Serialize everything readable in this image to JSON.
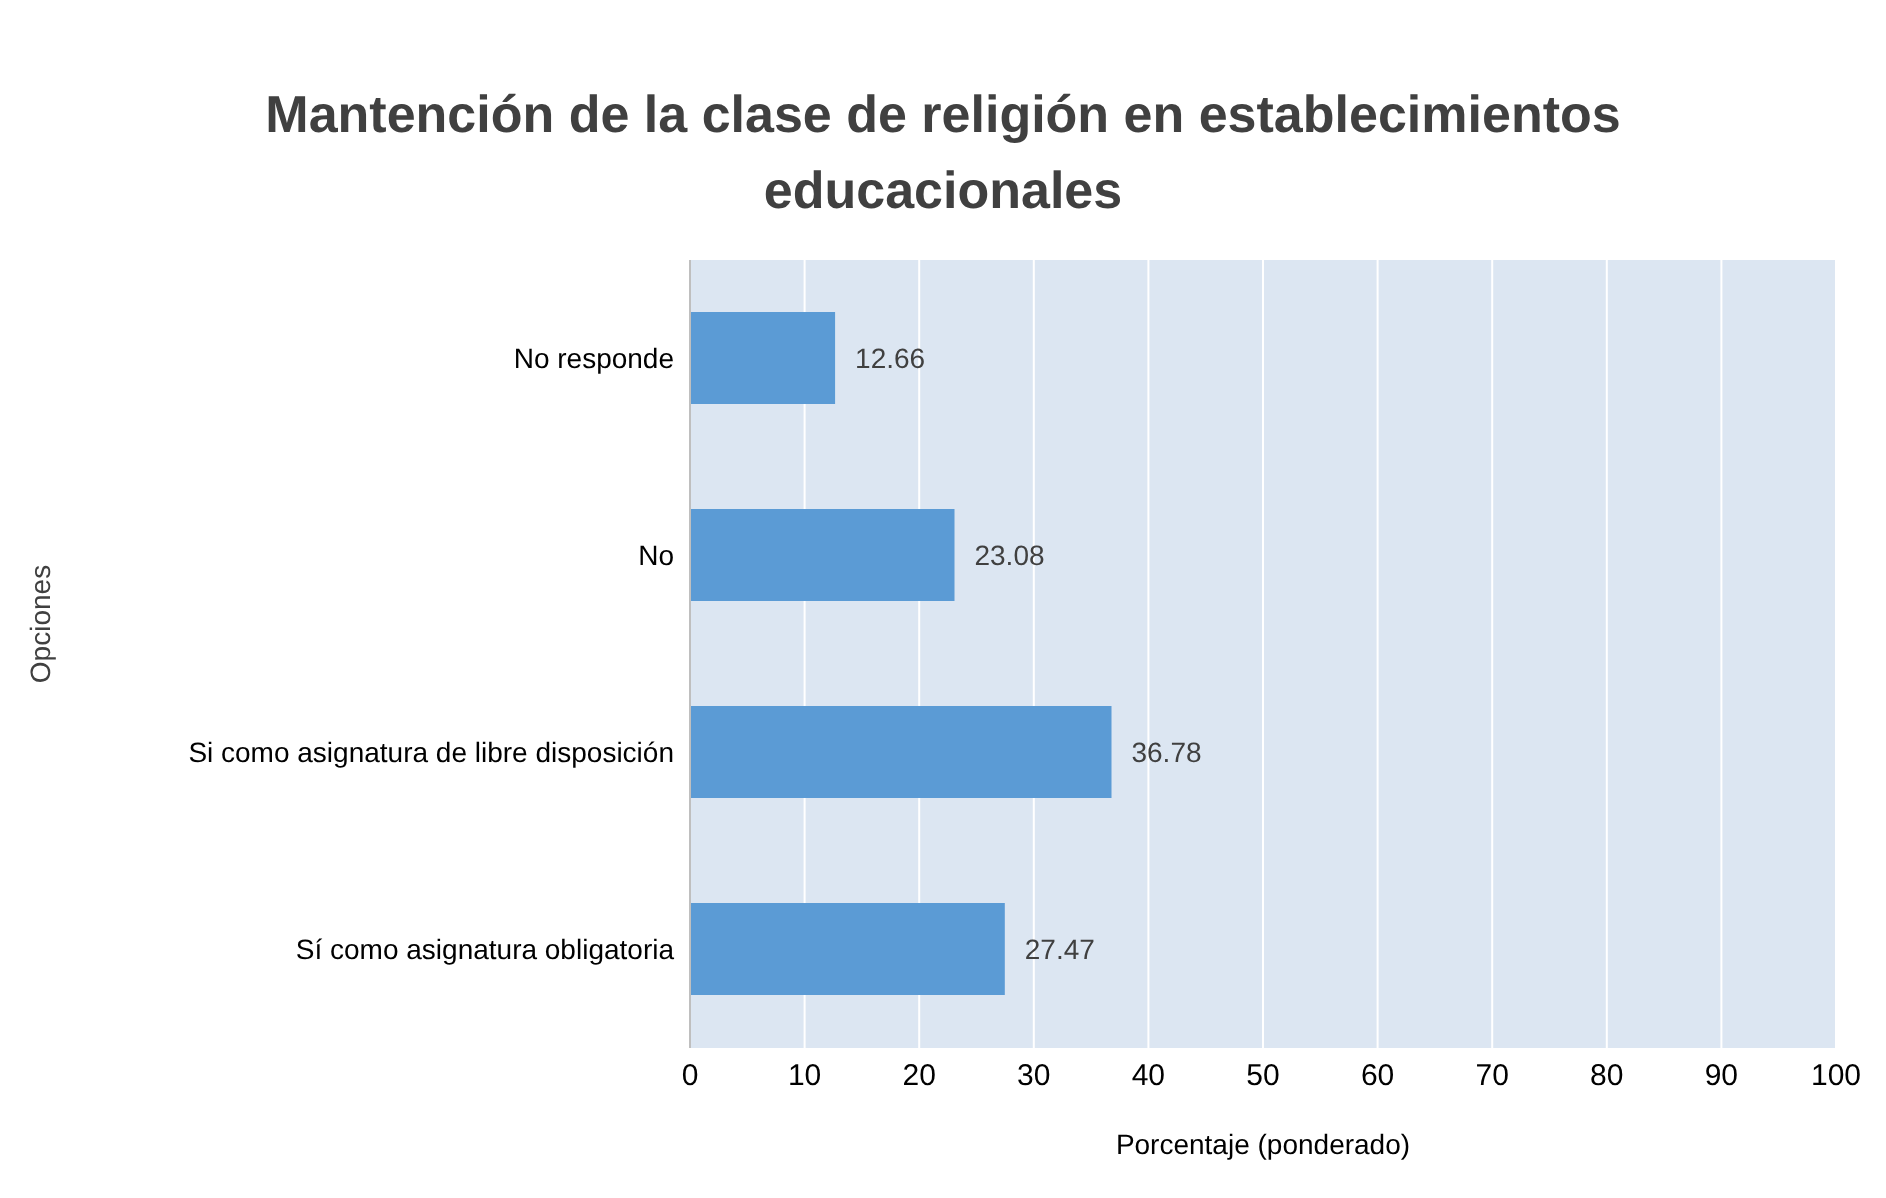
{
  "chart_data": {
    "type": "bar",
    "orientation": "horizontal",
    "title": "Mantención de la clase de religión en establecimientos educacionales",
    "xlabel": "Porcentaje (ponderado)",
    "ylabel": "Opciones",
    "categories": [
      "No responde",
      "No",
      "Si como asignatura de libre disposición",
      "Sí como asignatura obligatoria"
    ],
    "values": [
      12.66,
      23.08,
      36.78,
      27.47
    ],
    "color": "#5b9bd5",
    "xlim": [
      0,
      100
    ],
    "xticks": [
      0,
      10,
      20,
      30,
      40,
      50,
      60,
      70,
      80,
      90,
      100
    ],
    "grid": "x",
    "data_labels": true
  }
}
